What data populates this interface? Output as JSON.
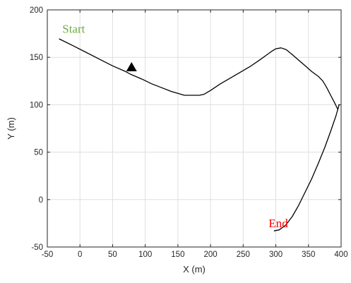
{
  "chart_data": {
    "type": "line",
    "title": "",
    "xlabel": "X (m)",
    "ylabel": "Y (m)",
    "xlim": [
      -50,
      400
    ],
    "ylim": [
      -50,
      200
    ],
    "xticks": [
      -50,
      0,
      50,
      100,
      150,
      200,
      250,
      300,
      350,
      400
    ],
    "yticks": [
      -50,
      0,
      50,
      100,
      150,
      200
    ],
    "grid": true,
    "line_color": "#000000",
    "series": [
      {
        "x": [
          -32,
          -10,
          10,
          30,
          50,
          70,
          78,
          95,
          110,
          125,
          140,
          150,
          160,
          167,
          175,
          183,
          190,
          200,
          215,
          230,
          245,
          260,
          275,
          285,
          293,
          300,
          308,
          316,
          325,
          335,
          345,
          355,
          365,
          372,
          378,
          384,
          390,
          395,
          397,
          392,
          384,
          375,
          365,
          355,
          345,
          335,
          325,
          315,
          305,
          297
        ],
        "y": [
          169.5,
          162,
          155,
          148,
          141,
          135,
          132,
          127,
          122,
          118,
          114,
          112,
          110,
          110,
          110,
          110,
          111,
          115,
          122,
          128,
          134,
          140,
          147,
          152,
          156,
          159,
          160,
          158,
          153,
          147,
          141,
          135,
          130,
          125,
          118,
          110,
          102,
          95,
          100,
          88,
          72,
          55,
          38,
          22,
          8,
          -6,
          -18,
          -27,
          -32,
          -33
        ]
      }
    ],
    "annotations": [
      {
        "text": "Start",
        "x": -27,
        "y": 176,
        "color": "#70ad47"
      },
      {
        "text": "End",
        "x": 289,
        "y": -29,
        "color": "#ff0000"
      }
    ],
    "marker": {
      "shape": "triangle",
      "x": 79,
      "y": 139,
      "color": "#000000"
    }
  }
}
